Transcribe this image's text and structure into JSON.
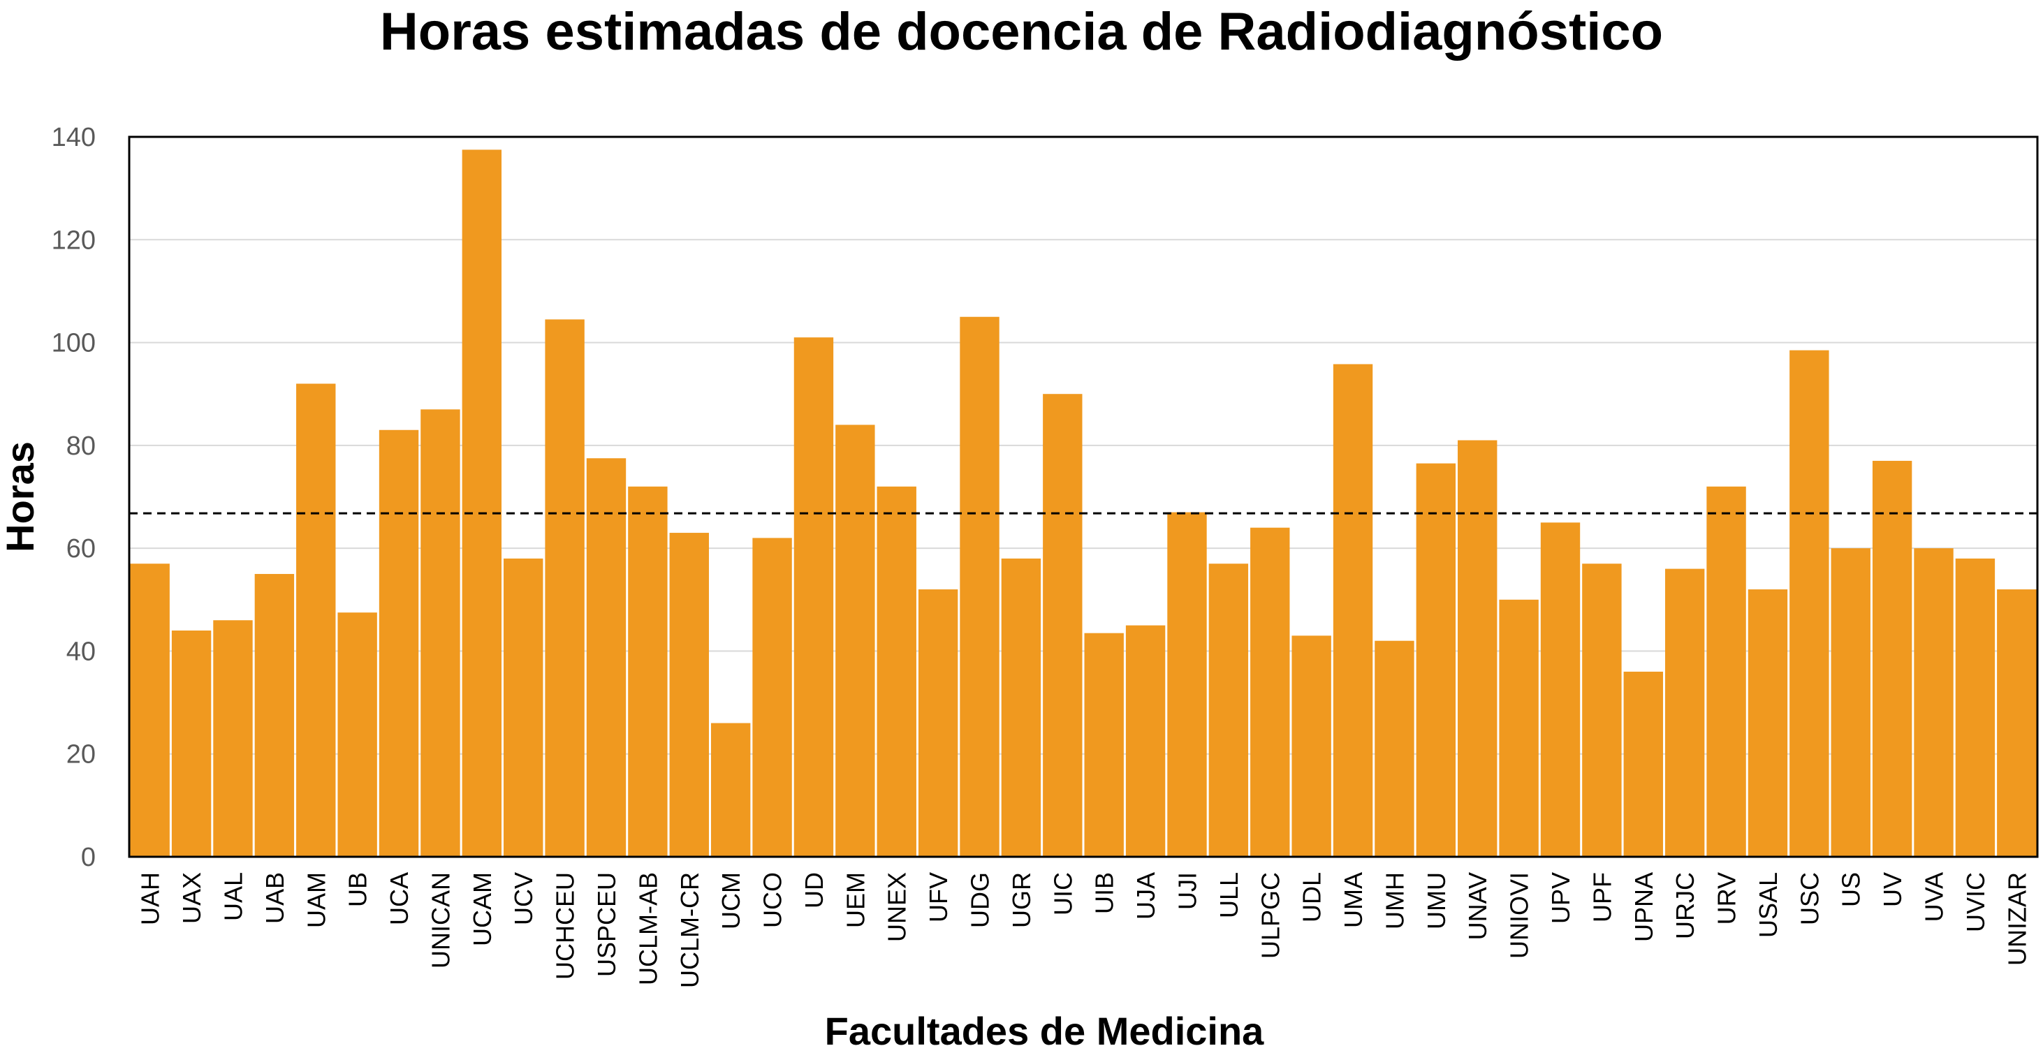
{
  "chart_data": {
    "type": "bar",
    "title": "Horas estimadas de docencia de Radiodiagnóstico",
    "xlabel": "Facultades de Medicina",
    "ylabel": "Horas",
    "ylim": [
      0,
      140
    ],
    "yticks": [
      0,
      20,
      40,
      60,
      80,
      100,
      120,
      140
    ],
    "grid": true,
    "bar_color": "#F0991F",
    "reference_line": {
      "value": 66.8,
      "style": "dashed",
      "color": "#000000"
    },
    "categories": [
      "UAH",
      "UAX",
      "UAL",
      "UAB",
      "UAM",
      "UB",
      "UCA",
      "UNICAN",
      "UCAM",
      "UCV",
      "UCHCEU",
      "USPCEU",
      "UCLM-AB",
      "UCLM-CR",
      "UCM",
      "UCO",
      "UD",
      "UEM",
      "UNEX",
      "UFV",
      "UDG",
      "UGR",
      "UIC",
      "UIB",
      "UJA",
      "UJI",
      "ULL",
      "ULPGC",
      "UDL",
      "UMA",
      "UMH",
      "UMU",
      "UNAV",
      "UNIOVI",
      "UPV",
      "UPF",
      "UPNA",
      "URJC",
      "URV",
      "USAL",
      "USC",
      "US",
      "UV",
      "UVA",
      "UVIC",
      "UNIZAR"
    ],
    "values": [
      57,
      44,
      46,
      55,
      92,
      47.5,
      83,
      87,
      137.5,
      58,
      104.5,
      77.5,
      72,
      63,
      26,
      62,
      101,
      84,
      72,
      52,
      105,
      58,
      90,
      43.5,
      45,
      67,
      57,
      64,
      43,
      95.8,
      42,
      76.5,
      81,
      50,
      65,
      57,
      36,
      56,
      72,
      52,
      98.5,
      60,
      77,
      60,
      58,
      52
    ]
  }
}
